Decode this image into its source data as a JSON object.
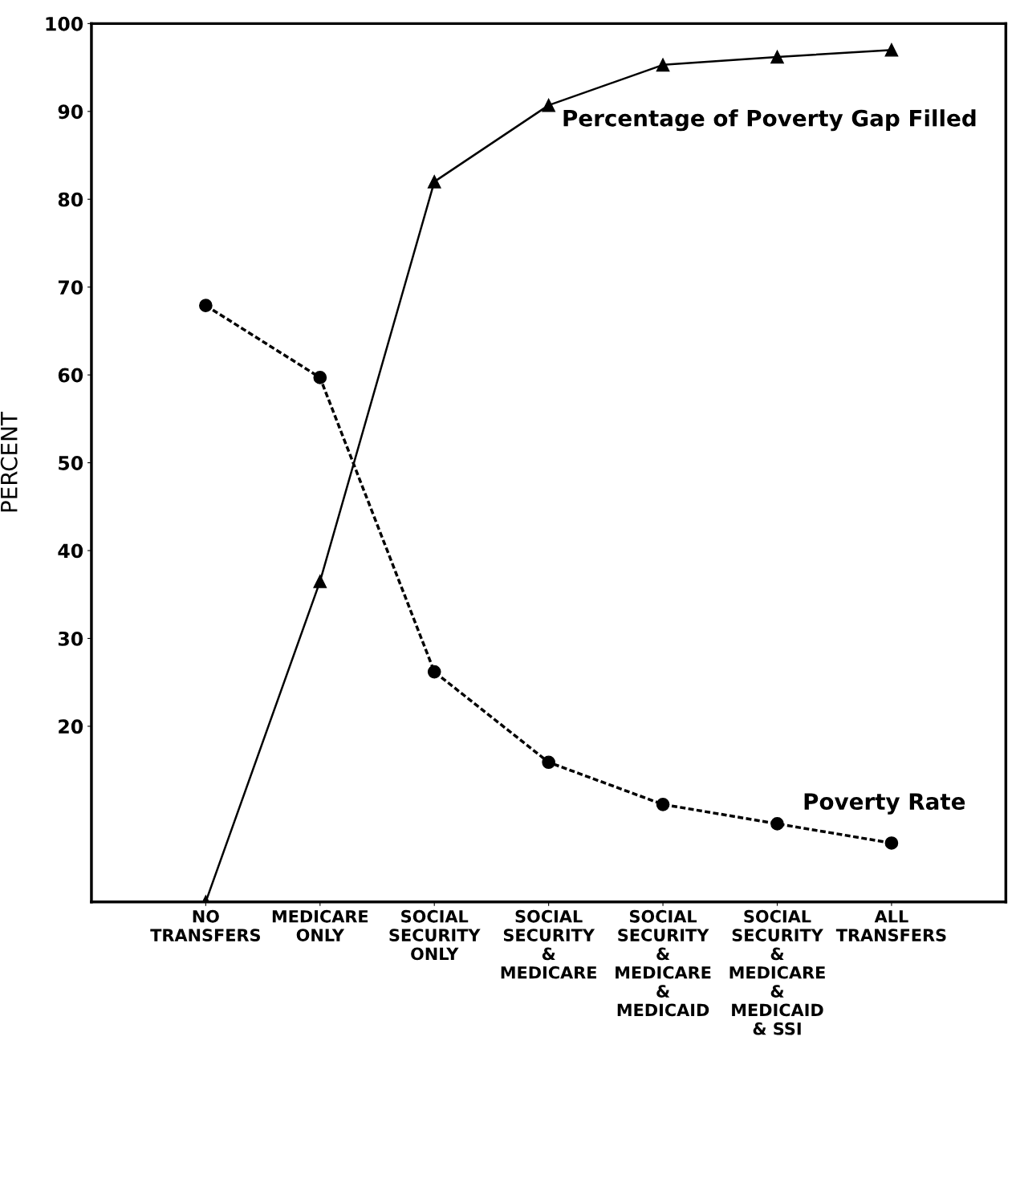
{
  "chart_data": {
    "type": "line",
    "ylabel": "PERCENT",
    "categories": [
      "NO\nTRANSFERS",
      "MEDICARE\nONLY",
      "SOCIAL\nSECURITY\nONLY",
      "SOCIAL\nSECURITY\n&\nMEDICARE",
      "SOCIAL\nSECURITY\n&\nMEDICARE\n&\nMEDICAID",
      "SOCIAL\nSECURITY\n&\nMEDICARE\n&\nMEDICAID\n& SSI",
      "ALL\nTRANSFERS"
    ],
    "series": [
      {
        "name": "Percentage of Poverty Gap Filled",
        "color": "#000000",
        "marker": "triangle",
        "line_style": "solid",
        "values": [
          0,
          36.5,
          82,
          90.7,
          95.3,
          96.2,
          97
        ]
      },
      {
        "name": "Poverty Rate",
        "color": "#000000",
        "marker": "circle",
        "line_style": "dashed",
        "values": [
          67.9,
          59.7,
          26.2,
          15.9,
          11.1,
          8.9,
          6.7
        ]
      }
    ],
    "ylim": [
      0,
      100
    ],
    "yticks": [
      20,
      30,
      40,
      50,
      60,
      70,
      80,
      90,
      100
    ],
    "grid": false,
    "legend": false
  }
}
